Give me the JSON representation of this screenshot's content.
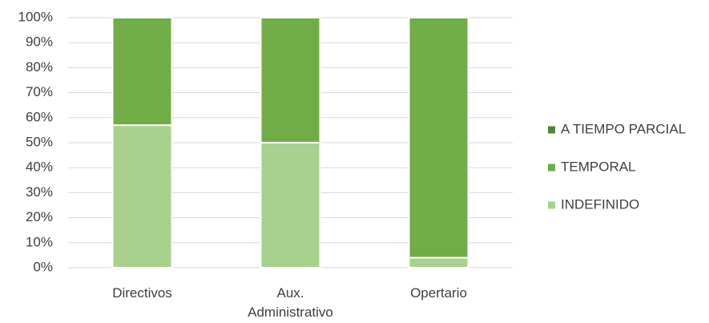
{
  "chart_data": {
    "type": "stacked_bar",
    "categories": [
      "Directivos",
      "Aux. Administrativo",
      "Opertario"
    ],
    "series": [
      {
        "name": "INDEFINIDO",
        "color": "#a9d18e",
        "values": [
          57,
          50,
          4
        ]
      },
      {
        "name": "TEMPORAL",
        "color": "#70ad47",
        "values": [
          43,
          50,
          96
        ]
      },
      {
        "name": "A TIEMPO PARCIAL",
        "color": "#548235",
        "values": [
          0,
          0,
          0
        ]
      }
    ],
    "ylim": [
      0,
      100
    ],
    "yticks": [
      {
        "value": 0,
        "label": "0%"
      },
      {
        "value": 10,
        "label": "10%"
      },
      {
        "value": 20,
        "label": "20%"
      },
      {
        "value": 30,
        "label": "30%"
      },
      {
        "value": 40,
        "label": "40%"
      },
      {
        "value": 50,
        "label": "50%"
      },
      {
        "value": 60,
        "label": "60%"
      },
      {
        "value": 70,
        "label": "70%"
      },
      {
        "value": 80,
        "label": "80%"
      },
      {
        "value": 90,
        "label": "90%"
      },
      {
        "value": 100,
        "label": "100%"
      }
    ],
    "grid": true,
    "legend": "right"
  }
}
